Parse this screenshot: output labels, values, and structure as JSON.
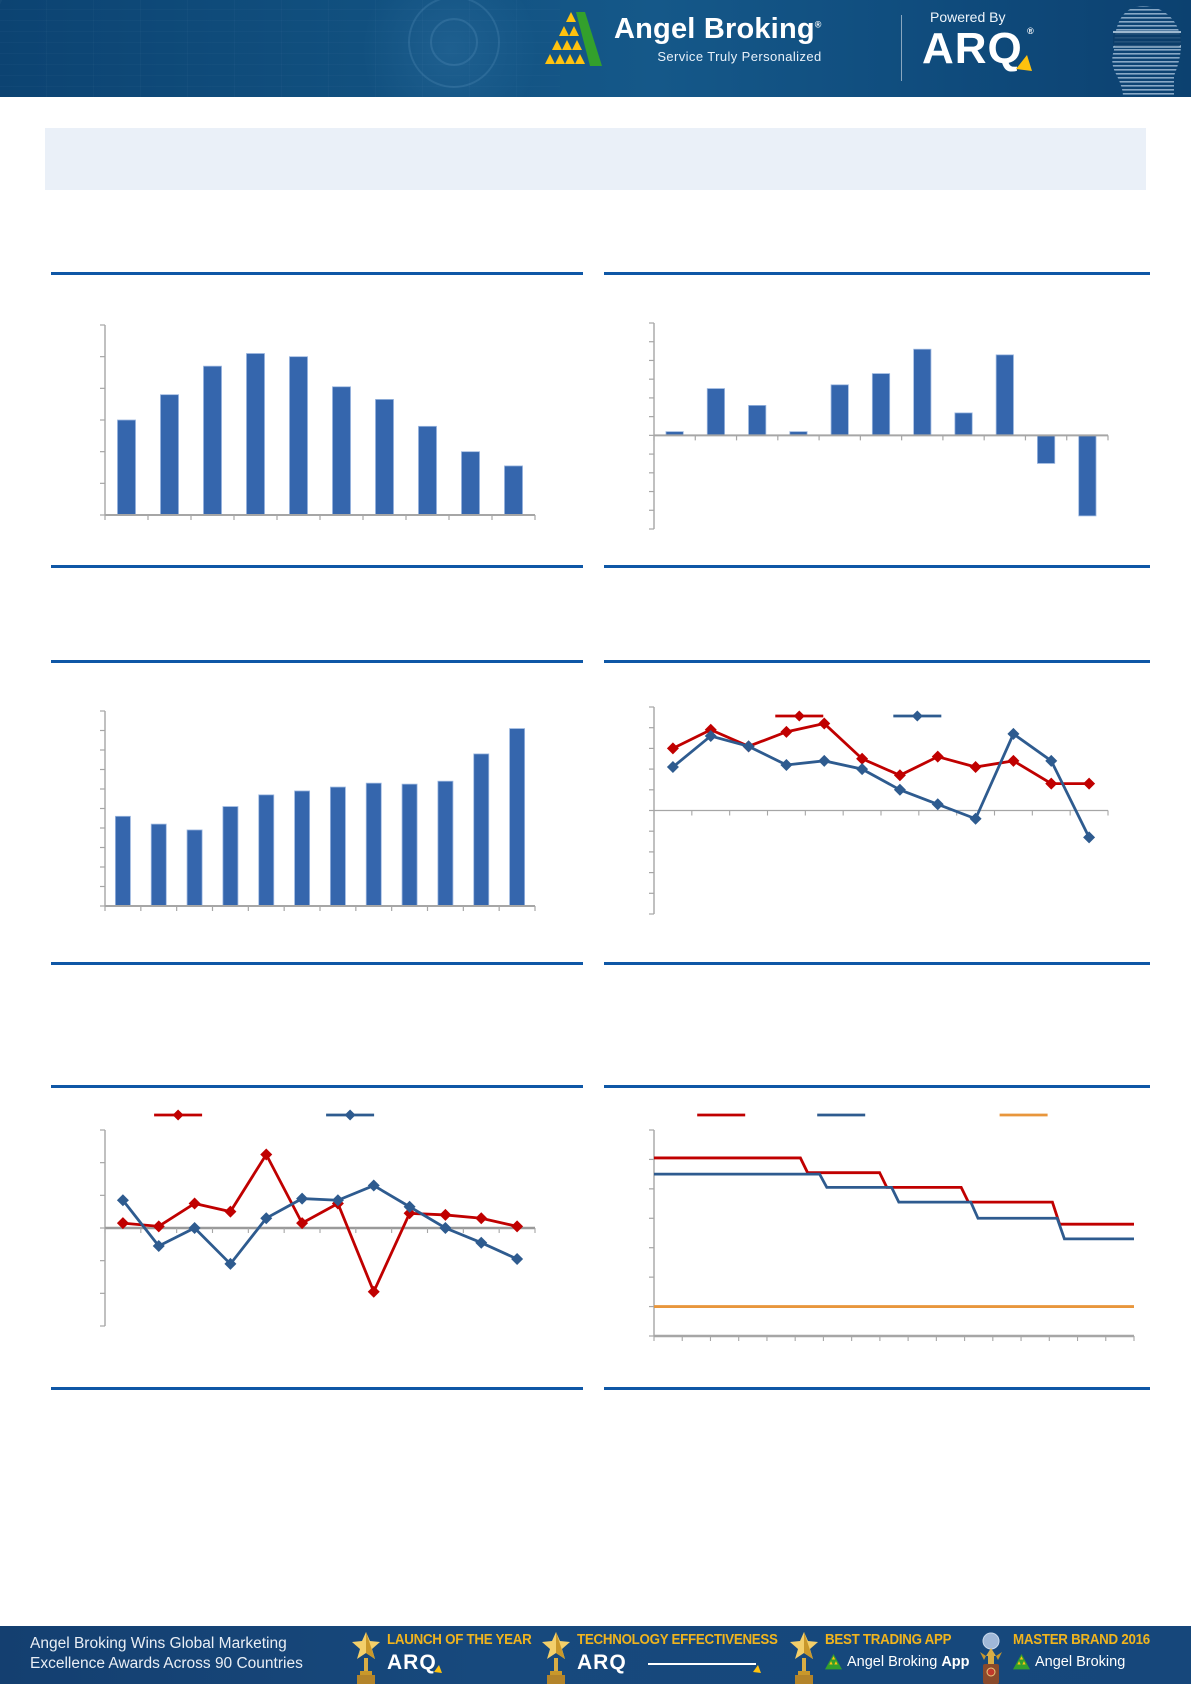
{
  "header": {
    "brand": "Angel Broking",
    "brand_reg": "®",
    "tagline": "Service Truly Personalized",
    "powered_by": "Powered By",
    "arq": "ARQ",
    "arq_reg": "®"
  },
  "title_box": {
    "text": ""
  },
  "footer": {
    "headline_line1": "Angel Broking Wins Global Marketing",
    "headline_line2": "Excellence Awards Across 90 Countries",
    "awards": [
      {
        "title": "LAUNCH OF THE YEAR",
        "logo": "ARQ",
        "icon": "star-trophy"
      },
      {
        "title": "TECHNOLOGY EFFECTIVENESS",
        "logo": "ARQ",
        "icon": "star-trophy"
      },
      {
        "title": "BEST TRADING APP",
        "logo": "Angel Broking",
        "logo_suffix": "App",
        "icon": "star-trophy"
      },
      {
        "title": "MASTER BRAND 2016",
        "logo": "Angel Broking",
        "icon": "globe-trophy"
      }
    ]
  },
  "palette": {
    "divider_blue": "#0f57a6",
    "bar_blue": "#3566ad",
    "bar_edge": "#9db8e0",
    "line_red": "#c00000",
    "line_navy": "#2e5b8f",
    "line_orange": "#e8963c",
    "axis_gray": "#a6a6a6",
    "header_bg": "#11507f",
    "footer_bg": "#16477b",
    "gold": "#f0b41e",
    "title_box_bg": "#eaf0f8",
    "brand_green": "#33a02c",
    "brand_yellow": "#ffc20e"
  },
  "chart_data": [
    {
      "name": "bar-rise-then-fall",
      "type": "bar",
      "values": [
        3.0,
        3.8,
        4.7,
        5.1,
        5.0,
        4.05,
        3.65,
        2.8,
        2.0,
        1.55
      ],
      "ylim": [
        0,
        6
      ],
      "ytick_step": 1,
      "bar_color": "#3566ad",
      "grid": false,
      "axis_labels_visible": false,
      "margins": {
        "l": 54,
        "r": 48,
        "t": 12,
        "b": 30
      }
    },
    {
      "name": "bar-with-negatives",
      "type": "bar",
      "values": [
        0.2,
        2.5,
        1.6,
        0.2,
        2.7,
        3.3,
        4.6,
        1.2,
        4.3,
        -1.5,
        -4.3
      ],
      "ylim": [
        -5,
        6
      ],
      "ytick_step": 1,
      "bar_color": "#3566ad",
      "grid": false,
      "axis_labels_visible": false,
      "margins": {
        "l": 50,
        "r": 42,
        "t": 10,
        "b": 16
      }
    },
    {
      "name": "bar-gradual-rise",
      "type": "bar",
      "values": [
        4.6,
        4.2,
        3.9,
        5.1,
        5.7,
        5.9,
        6.1,
        6.3,
        6.25,
        6.4,
        7.8,
        9.1
      ],
      "ylim": [
        0,
        10
      ],
      "ytick_step": 1,
      "bar_color": "#3566ad",
      "grid": false,
      "axis_labels_visible": false,
      "margins": {
        "l": 54,
        "r": 48,
        "t": 14,
        "b": 36
      }
    },
    {
      "name": "two-line-series-declining",
      "type": "line",
      "series": [
        {
          "name": "red-series",
          "color": "#c00000",
          "values": [
            3.0,
            3.9,
            3.1,
            3.8,
            4.2,
            2.5,
            1.7,
            2.6,
            2.1,
            2.4,
            1.3,
            1.3
          ]
        },
        {
          "name": "navy-series",
          "color": "#2e5b8f",
          "values": [
            2.1,
            3.6,
            3.1,
            2.2,
            2.4,
            2.0,
            1.0,
            0.3,
            -0.4,
            3.7,
            2.4,
            -1.3
          ]
        }
      ],
      "ylim": [
        -5,
        5
      ],
      "ytick_step": 1,
      "grid": false,
      "axis_labels_visible": false,
      "legend": {
        "position": "inside",
        "items": [
          {
            "color": "#c00000",
            "x": 0.32,
            "marker": true
          },
          {
            "color": "#2e5b8f",
            "x": 0.58,
            "marker": true
          }
        ]
      },
      "margins": {
        "l": 50,
        "r": 42,
        "t": 10,
        "b": 28
      }
    },
    {
      "name": "two-line-series-volatile",
      "type": "line",
      "zero_line_bold": true,
      "series": [
        {
          "name": "red-series",
          "color": "#c00000",
          "values": [
            0.15,
            0.05,
            0.75,
            0.5,
            2.25,
            0.15,
            0.75,
            -1.95,
            0.45,
            0.4,
            0.3,
            0.05
          ]
        },
        {
          "name": "navy-series",
          "color": "#2e5b8f",
          "values": [
            0.85,
            -0.55,
            0.0,
            -1.1,
            0.3,
            0.9,
            0.85,
            1.3,
            0.65,
            0.0,
            -0.45,
            -0.95
          ]
        }
      ],
      "ylim": [
        -3,
        3
      ],
      "ytick_step": 1,
      "grid": false,
      "axis_labels_visible": false,
      "legend": {
        "position": "above",
        "items": [
          {
            "color": "#c00000",
            "x": 0.17,
            "marker": true
          },
          {
            "color": "#2e5b8f",
            "x": 0.57,
            "marker": true
          }
        ]
      },
      "margins": {
        "l": 54,
        "r": 48,
        "t": 26,
        "b": 40
      }
    },
    {
      "name": "step-lines-with-flat-line",
      "type": "step",
      "xlim": [
        0,
        100
      ],
      "series": [
        {
          "name": "red-step",
          "color": "#c00000",
          "points": [
            [
              0,
              6.05
            ],
            [
              30.5,
              6.05
            ],
            [
              32,
              5.55
            ],
            [
              47,
              5.55
            ],
            [
              48.5,
              5.05
            ],
            [
              64,
              5.05
            ],
            [
              65.5,
              4.55
            ],
            [
              83,
              4.55
            ],
            [
              84.5,
              3.8
            ],
            [
              100,
              3.8
            ]
          ]
        },
        {
          "name": "navy-step",
          "color": "#2e5b8f",
          "points": [
            [
              0,
              5.5
            ],
            [
              34.5,
              5.5
            ],
            [
              36,
              5.05
            ],
            [
              49.5,
              5.05
            ],
            [
              51,
              4.55
            ],
            [
              66,
              4.55
            ],
            [
              67.5,
              4.0
            ],
            [
              84,
              4.0
            ],
            [
              85.5,
              3.3
            ],
            [
              100,
              3.3
            ]
          ]
        },
        {
          "name": "orange-flat",
          "color": "#e8963c",
          "points": [
            [
              0,
              1.0
            ],
            [
              100,
              1.0
            ]
          ]
        }
      ],
      "ylim": [
        0,
        7
      ],
      "ytick_step": 1,
      "x_tick_count": 17,
      "grid": false,
      "axis_labels_visible": false,
      "legend": {
        "position": "above",
        "items": [
          {
            "color": "#c00000",
            "x": 0.14,
            "marker": false
          },
          {
            "color": "#2e5b8f",
            "x": 0.39,
            "marker": false
          },
          {
            "color": "#e8963c",
            "x": 0.77,
            "marker": false
          }
        ]
      },
      "margins": {
        "l": 50,
        "r": 16,
        "t": 26,
        "b": 30
      }
    }
  ]
}
